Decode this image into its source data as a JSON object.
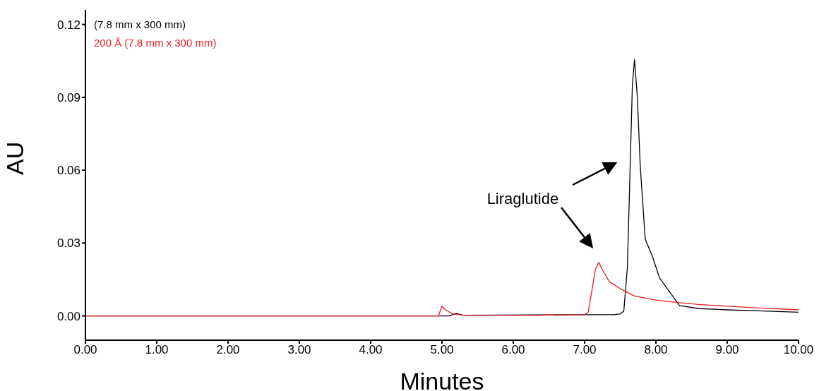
{
  "chart_data": {
    "type": "line",
    "xlabel": "Minutes",
    "ylabel": "AU",
    "xlim": [
      0,
      10
    ],
    "ylim": [
      -0.01,
      0.126
    ],
    "xticks": [
      {
        "value": 0,
        "label": "0.00"
      },
      {
        "value": 1,
        "label": "1.00"
      },
      {
        "value": 2,
        "label": "2.00"
      },
      {
        "value": 3,
        "label": "3.00"
      },
      {
        "value": 4,
        "label": "4.00"
      },
      {
        "value": 5,
        "label": "5.00"
      },
      {
        "value": 6,
        "label": "6.00"
      },
      {
        "value": 7,
        "label": "7.00"
      },
      {
        "value": 8,
        "label": "8.00"
      },
      {
        "value": 9,
        "label": "9.00"
      },
      {
        "value": 10,
        "label": "10.00"
      }
    ],
    "yticks": [
      {
        "value": 0,
        "label": "0.00"
      },
      {
        "value": 0.03,
        "label": "0.03"
      },
      {
        "value": 0.06,
        "label": "0.06"
      },
      {
        "value": 0.09,
        "label": "0.09"
      },
      {
        "value": 0.12,
        "label": "0.12"
      }
    ],
    "legend": "top left",
    "grid": false,
    "marker": "none",
    "line_style": "solid",
    "annotations": [
      "Liraglutide"
    ],
    "series": [
      {
        "name": "(7.8 mm x 300 mm)",
        "color": "#000000",
        "x": [
          0,
          5.1,
          5.2,
          5.3,
          7.0,
          7.4,
          7.5,
          7.55,
          7.6,
          7.63,
          7.67,
          7.7,
          7.74,
          7.78,
          7.85,
          7.95,
          8.05,
          8.33,
          8.6,
          9.0,
          9.5,
          10
        ],
        "values": [
          0,
          0,
          0.001,
          0.0003,
          0.0005,
          0.0005,
          0.0008,
          0.002,
          0.02,
          0.052,
          0.095,
          0.1055,
          0.09,
          0.062,
          0.0316,
          0.0246,
          0.0157,
          0.0043,
          0.003,
          0.0025,
          0.002,
          0.0015
        ]
      },
      {
        "name": "200 Å (7.8 mm x 300 mm)",
        "color": "#ed1c24",
        "x": [
          0,
          4.95,
          5.0,
          5.05,
          5.15,
          5.3,
          6.4,
          6.5,
          6.6,
          7.0,
          7.05,
          7.1,
          7.15,
          7.2,
          7.25,
          7.35,
          7.5,
          7.7,
          8.0,
          8.3,
          8.6,
          9.0,
          9.5,
          10
        ],
        "values": [
          0,
          0,
          0.004,
          0.0025,
          0.0008,
          0.0003,
          0.0002,
          0.0006,
          0.0002,
          0.0005,
          0.0015,
          0.01,
          0.019,
          0.022,
          0.019,
          0.014,
          0.0112,
          0.0082,
          0.0065,
          0.0055,
          0.0047,
          0.004,
          0.0032,
          0.0025
        ]
      }
    ]
  }
}
